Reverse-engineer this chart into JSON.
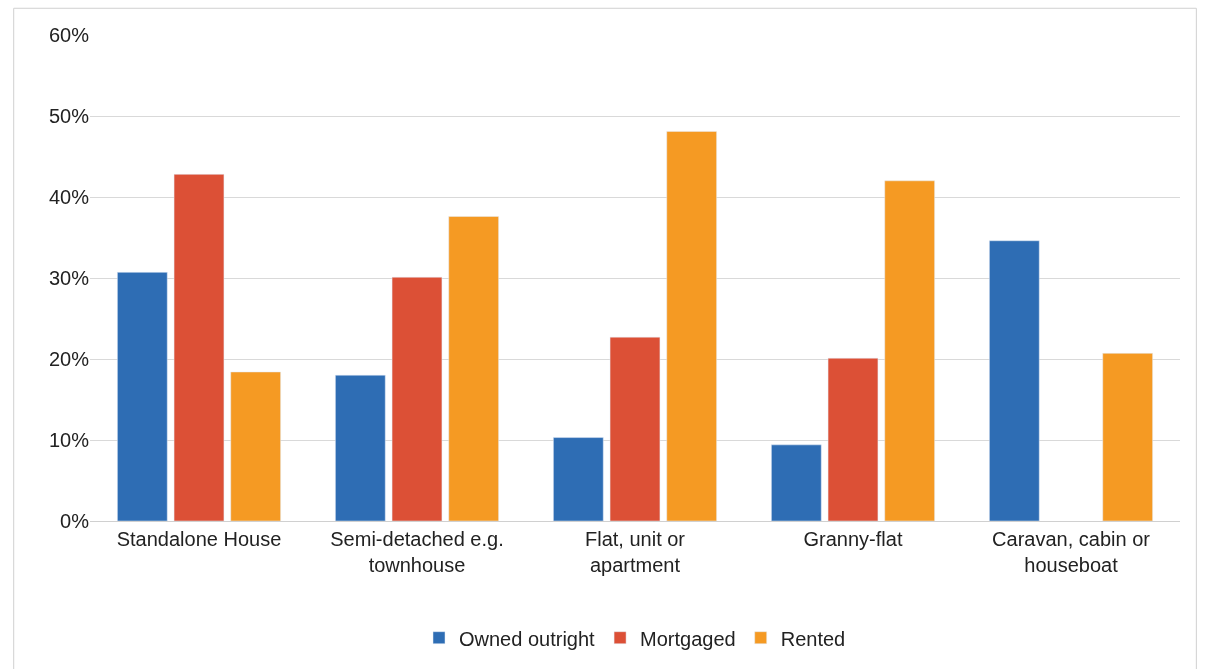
{
  "chart_data": {
    "type": "bar",
    "categories": [
      "Standalone House",
      "Semi-detached e.g. townhouse",
      "Flat, unit or apartment",
      "Granny-flat",
      "Caravan, cabin or houseboat"
    ],
    "series": [
      {
        "name": "Owned outright",
        "color": "#2e6db4",
        "values": [
          30.7,
          18.0,
          10.3,
          9.4,
          34.6
        ]
      },
      {
        "name": "Mortgaged",
        "color": "#dc5036",
        "values": [
          42.8,
          30.1,
          22.7,
          20.1,
          null
        ]
      },
      {
        "name": "Rented",
        "color": "#f59a23",
        "values": [
          18.4,
          37.6,
          48.1,
          42.0,
          20.7
        ]
      }
    ],
    "ylim": [
      0,
      60
    ],
    "yticks": [
      {
        "value": 0,
        "label": "0%"
      },
      {
        "value": 10,
        "label": "10%"
      },
      {
        "value": 20,
        "label": "20%"
      },
      {
        "value": 30,
        "label": "30%"
      },
      {
        "value": 40,
        "label": "40%"
      },
      {
        "value": 50,
        "label": "50%"
      },
      {
        "value": 60,
        "label": "60%"
      }
    ],
    "grid": "y",
    "legend": "bottom"
  }
}
